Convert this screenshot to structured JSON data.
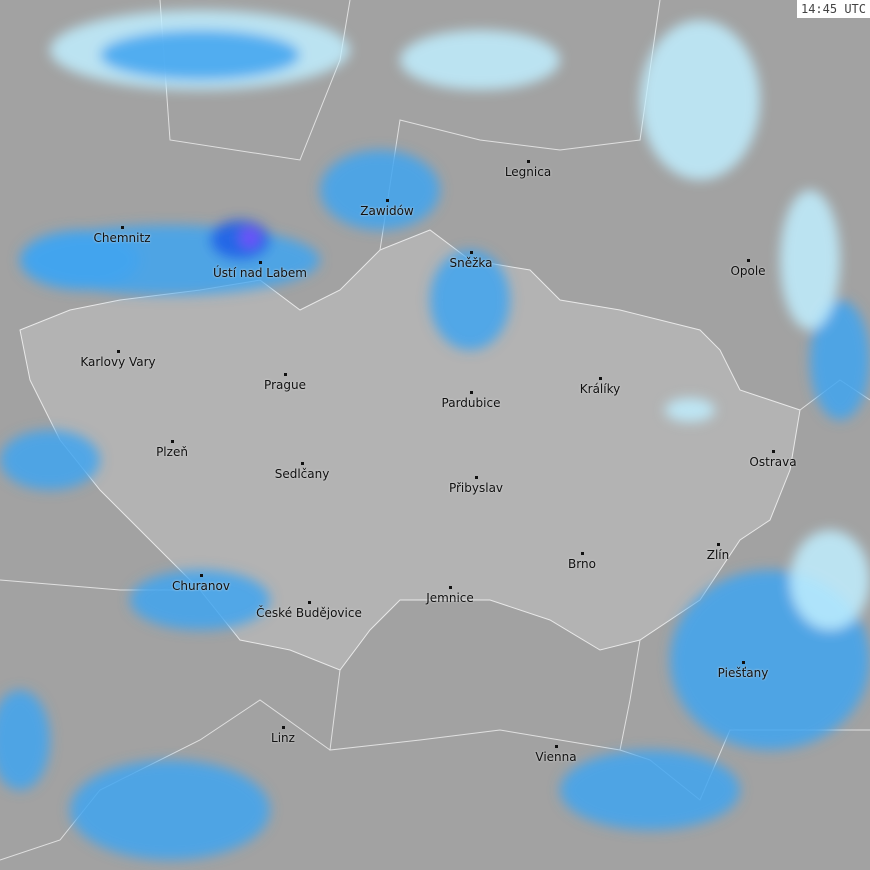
{
  "timestamp": "14:45 UTC",
  "colors": {
    "background": "#a2a2a2",
    "country": "#b3b3b3",
    "border": "#e8e8e8",
    "rain_light": "#bfefff",
    "rain_mid": "#41a4f0",
    "rain_heavy": "#1e5ce6",
    "rain_extreme": "#7a4dff"
  },
  "cities": [
    {
      "name": "Legnica"
    },
    {
      "name": "Zawidów"
    },
    {
      "name": "Chemnitz"
    },
    {
      "name": "Sněžka"
    },
    {
      "name": "Ústí nad Labem"
    },
    {
      "name": "Opole"
    },
    {
      "name": "Karlovy Vary"
    },
    {
      "name": "Prague"
    },
    {
      "name": "Pardubice"
    },
    {
      "name": "Králíky"
    },
    {
      "name": "Plzeň"
    },
    {
      "name": "Ostrava"
    },
    {
      "name": "Sedlčany"
    },
    {
      "name": "Přibyslav"
    },
    {
      "name": "Zlín"
    },
    {
      "name": "Brno"
    },
    {
      "name": "Churanov"
    },
    {
      "name": "České Budějovice"
    },
    {
      "name": "Jemnice"
    },
    {
      "name": "Piešťany"
    },
    {
      "name": "Linz"
    },
    {
      "name": "Vienna"
    }
  ]
}
